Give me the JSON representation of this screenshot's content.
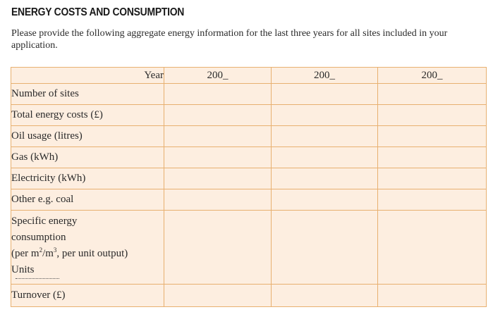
{
  "title": "ENERGY COSTS AND CONSUMPTION",
  "intro": "Please provide the following aggregate energy information for the last three years for all sites included in your application.",
  "table": {
    "year_label": "Year",
    "years": [
      "200_",
      "200_",
      "200_"
    ],
    "rows": [
      "Number of sites",
      "Total energy costs (£)",
      "Oil usage (litres)",
      "Gas (kWh)",
      "Electricity (kWh)",
      "Other e.g. coal"
    ],
    "specific": {
      "line1": "Specific energy",
      "line2": "consumption",
      "line3_prefix": "(per m",
      "sup1": "2",
      "mid": "/m",
      "sup2": "3",
      "line3_suffix": ", per unit output)",
      "units_label": "Units"
    },
    "turnover": "Turnover (£)"
  }
}
